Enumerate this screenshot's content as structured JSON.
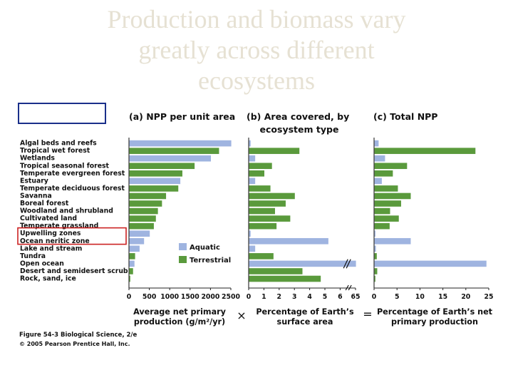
{
  "slide": {
    "title_lines": [
      "Production and biomass vary",
      "greatly across different",
      "ecosystems"
    ]
  },
  "colors": {
    "aquatic": "#9fb4e0",
    "terrestrial": "#5a9a3c",
    "highlight": "#cc2222",
    "blue_box": "#1a2f8a"
  },
  "chart_data": {
    "type": "bar",
    "categories": [
      "Algal beds and reefs",
      "Tropical wet forest",
      "Wetlands",
      "Tropical seasonal forest",
      "Temperate evergreen forest",
      "Estuary",
      "Temperate deciduous forest",
      "Savanna",
      "Boreal forest",
      "Woodland and shrubland",
      "Cultivated land",
      "Temperate grassland",
      "Upwelling zones",
      "Ocean neritic zone",
      "Lake and stream",
      "Tundra",
      "Open ocean",
      "Desert and semidesert scrub",
      "Rock, sand, ice"
    ],
    "category_type": [
      "aquatic",
      "terrestrial",
      "aquatic",
      "terrestrial",
      "terrestrial",
      "aquatic",
      "terrestrial",
      "terrestrial",
      "terrestrial",
      "terrestrial",
      "terrestrial",
      "terrestrial",
      "aquatic",
      "aquatic",
      "aquatic",
      "terrestrial",
      "aquatic",
      "terrestrial",
      "terrestrial"
    ],
    "highlighted_category": "Upwelling zones",
    "legend": {
      "aquatic": "Aquatic",
      "terrestrial": "Terrestrial"
    },
    "panels": [
      {
        "title": "(a) NPP per unit area",
        "xlabel_lines": [
          "Average net primary",
          "production (g/m²/yr)"
        ],
        "xlim": [
          0,
          2500
        ],
        "ticks": [
          0,
          500,
          1000,
          1500,
          2000,
          2500
        ],
        "values": [
          2500,
          2200,
          2000,
          1600,
          1300,
          1250,
          1200,
          900,
          800,
          700,
          650,
          600,
          500,
          360,
          250,
          140,
          125,
          90,
          3
        ]
      },
      {
        "title_lines": [
          "(b) Area covered, by",
          "ecosystem type"
        ],
        "xlabel_lines": [
          "Percentage of Earth’s",
          "surface area"
        ],
        "xlim": [
          0,
          7
        ],
        "ticks": [
          "0",
          "1",
          "2",
          "3",
          "4",
          "5",
          "6",
          "65"
        ],
        "axis_break": true,
        "values": [
          0.1,
          3.3,
          0.4,
          1.5,
          1.0,
          0.4,
          1.4,
          3.0,
          2.4,
          1.7,
          2.7,
          1.8,
          0.1,
          5.2,
          0.4,
          1.6,
          65,
          3.5,
          4.7
        ]
      },
      {
        "title": "(c) Total NPP",
        "xlabel_lines": [
          "Percentage of Earth’s net",
          "primary production"
        ],
        "xlim": [
          0,
          25
        ],
        "ticks": [
          0,
          5,
          10,
          15,
          20,
          25
        ],
        "values": [
          0.9,
          22,
          2.3,
          7.1,
          4.0,
          1.6,
          5.1,
          7.9,
          5.8,
          3.4,
          5.3,
          3.3,
          0.2,
          7.9,
          0.3,
          0.5,
          24.4,
          0.6,
          0.04
        ]
      }
    ],
    "operators": [
      "×",
      "="
    ]
  },
  "credits": {
    "line1": "Figure 54-3  Biological Science, 2/e",
    "line2": "© 2005 Pearson Prentice Hall, Inc."
  }
}
